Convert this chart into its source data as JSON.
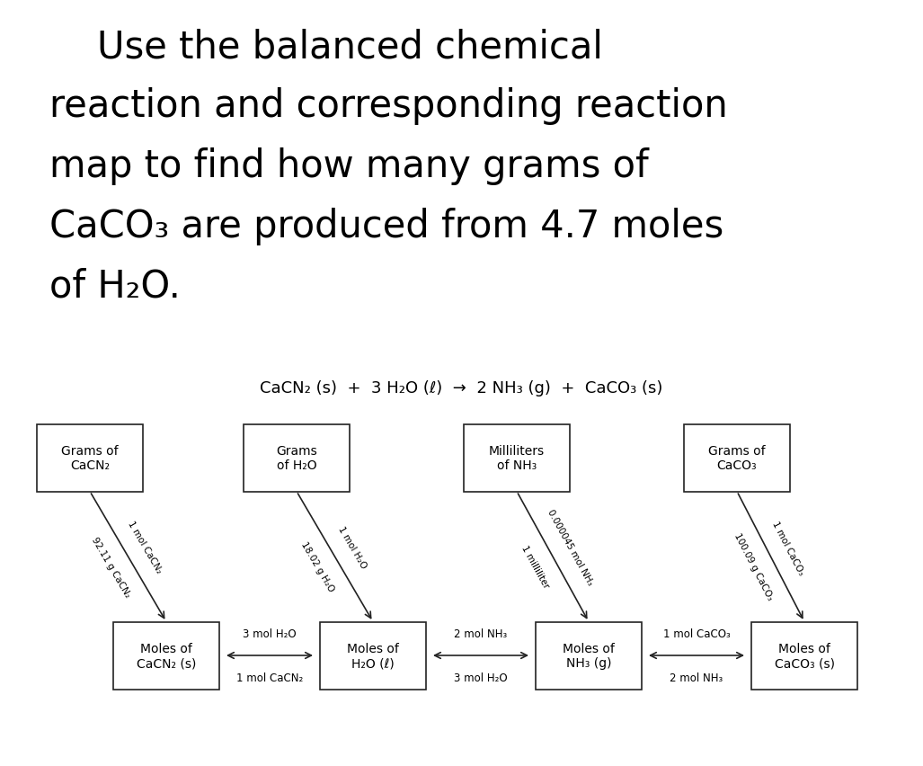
{
  "title_lines": [
    "    Use the balanced chemical",
    "reaction and corresponding reaction",
    "map to find how many grams of",
    "CaCO₃ are produced from 4.7 moles",
    "of H₂O."
  ],
  "equation": "CaCN₂ (s)  +  3 H₂O (ℓ)  →  2 NH₃ (g)  +  CaCO₃ (s)",
  "top_box_labels": [
    "Grams of\nCaCN₂",
    "Grams\nof H₂O",
    "Milliliters\nof NH₃",
    "Grams of\nCaCO₃"
  ],
  "bot_box_labels": [
    "Moles of\nCaCN₂ (s)",
    "Moles of\nH₂O (ℓ)",
    "Moles of\nNH₃ (g)",
    "Moles of\nCaCO₃ (s)"
  ],
  "diag_labels_left": [
    "92.11 g CaCN₂",
    "18.02 g H₂O",
    "1 milliliter",
    "100.09 g CaCO₃"
  ],
  "diag_labels_right": [
    "1 mol CaCN₂",
    "1 mol H₂O",
    "0.000045 mol NH₃",
    "1 mol CaCO₃"
  ],
  "horiz_labels_top": [
    "3 mol H₂O",
    "2 mol NH₃",
    "1 mol CaCO₃"
  ],
  "horiz_labels_bot": [
    "1 mol CaCN₂",
    "3 mol H₂O",
    "2 mol NH₃"
  ],
  "bg_color": "#ffffff",
  "box_color": "#ffffff",
  "box_edge_color": "#222222",
  "text_color": "#000000"
}
